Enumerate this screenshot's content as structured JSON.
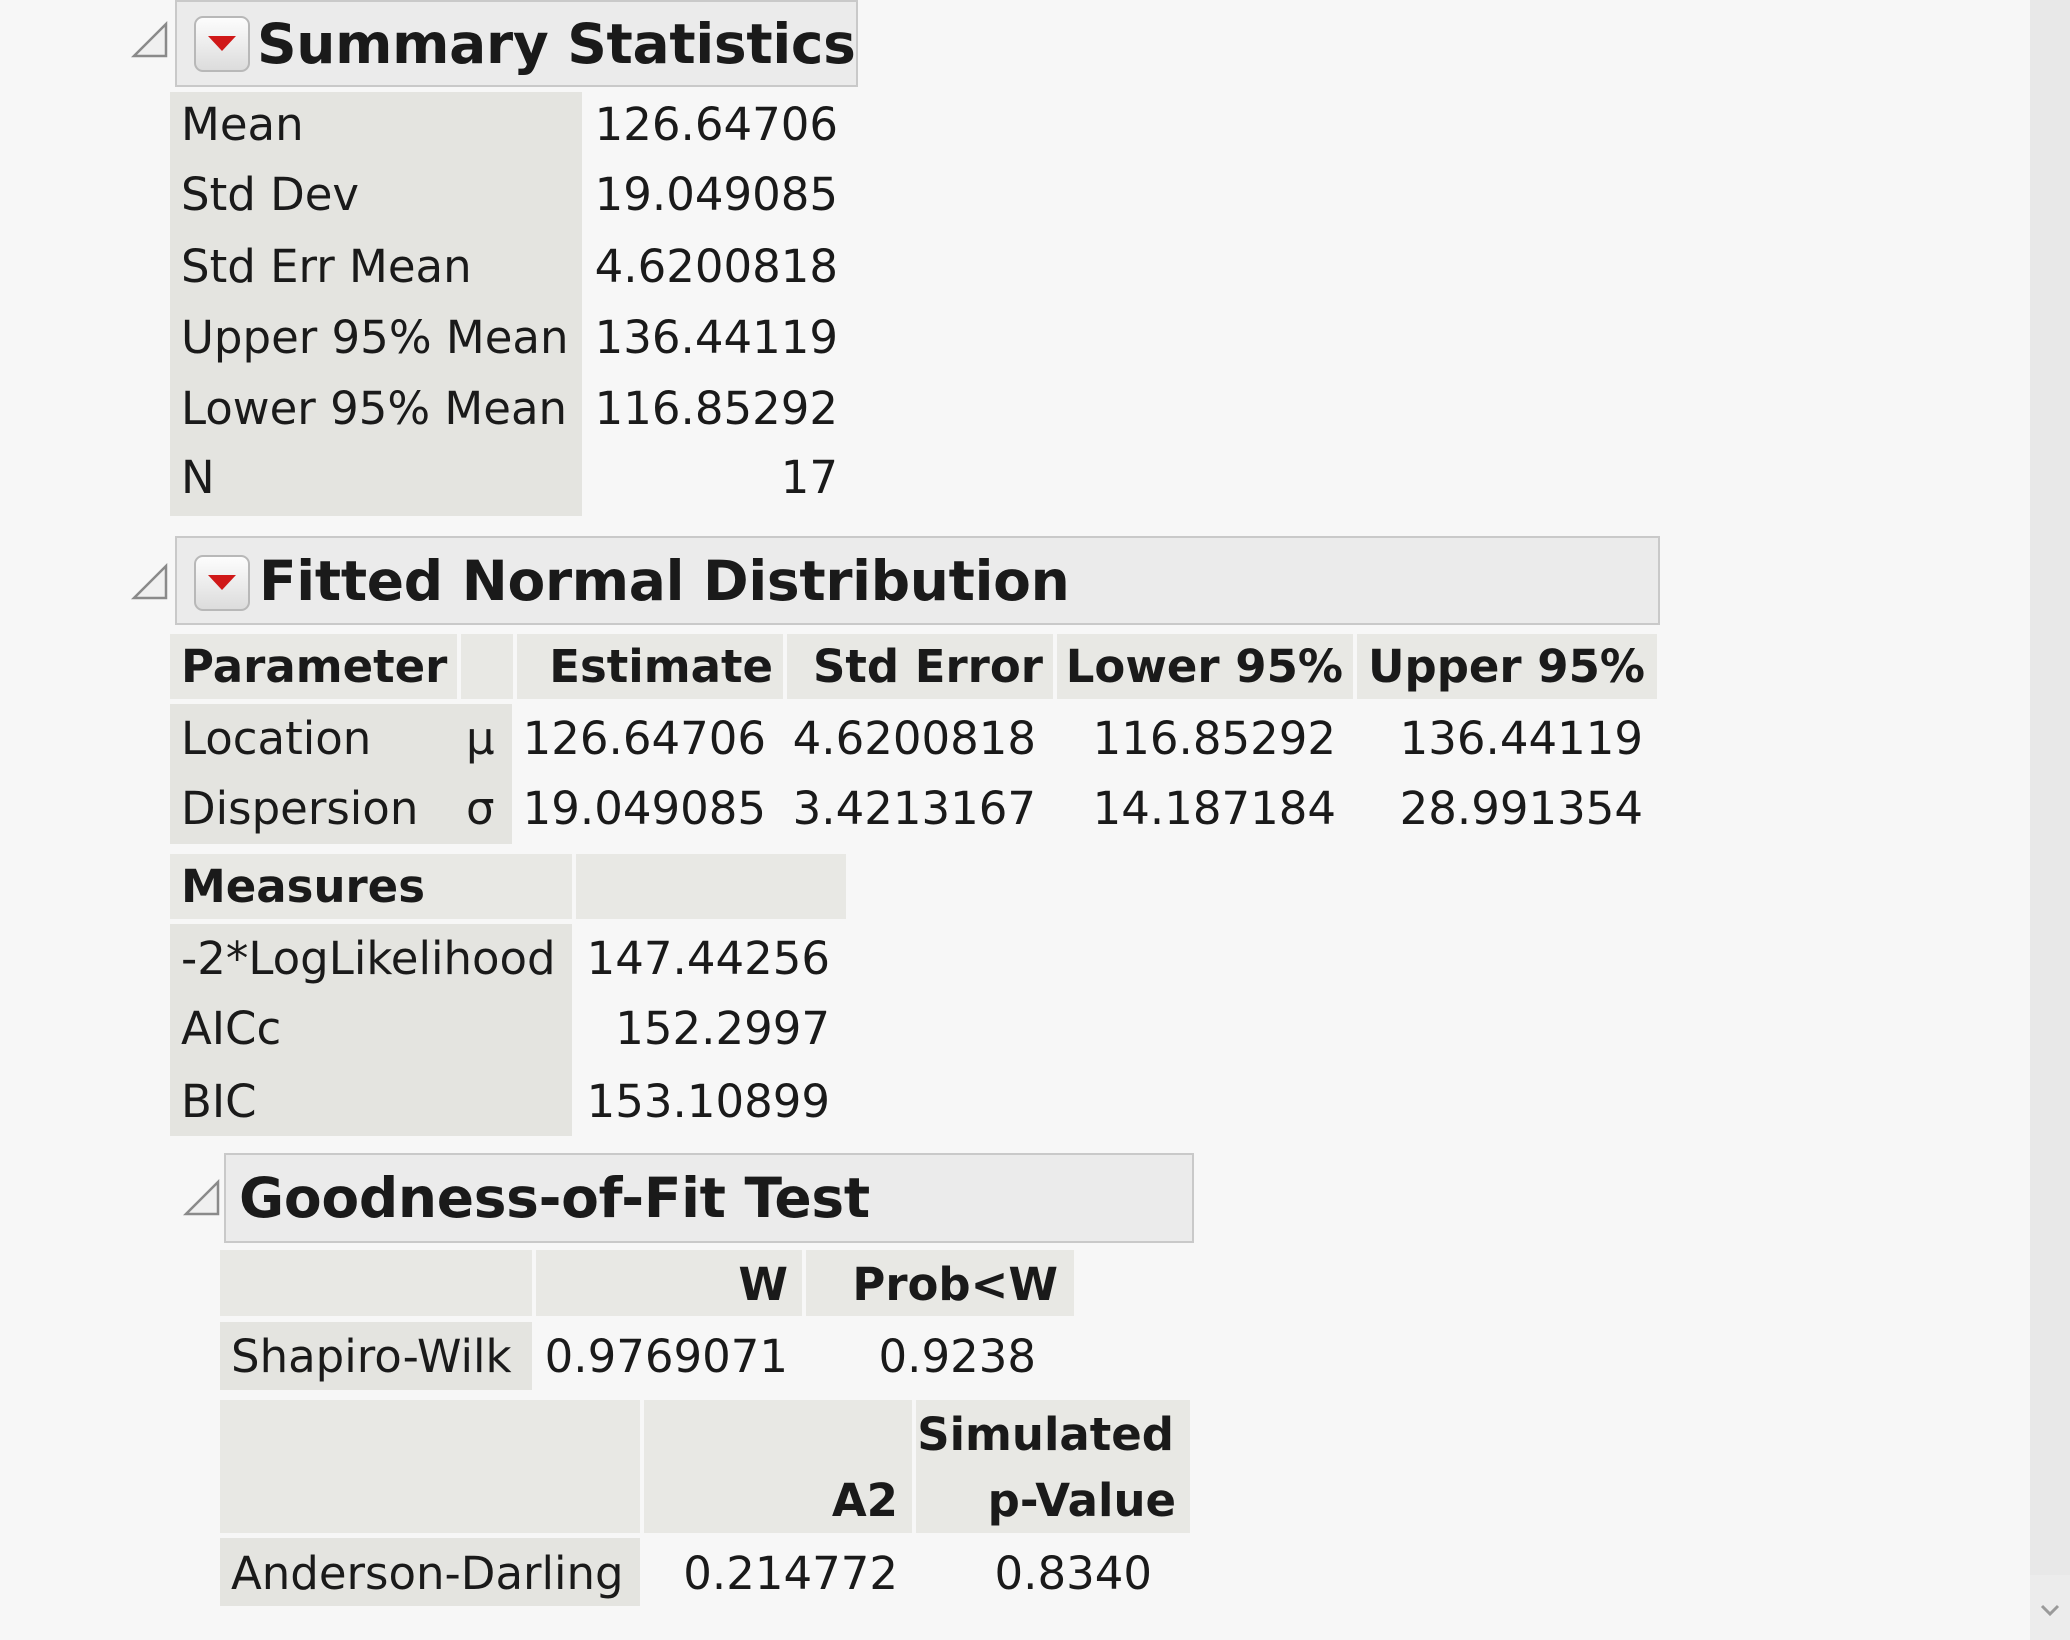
{
  "summary": {
    "title": "Summary Statistics",
    "rows": [
      {
        "label": "Mean",
        "value": "126.64706"
      },
      {
        "label": "Std Dev",
        "value": "19.049085"
      },
      {
        "label": "Std Err Mean",
        "value": "4.6200818"
      },
      {
        "label": "Upper 95% Mean",
        "value": "136.44119"
      },
      {
        "label": "Lower 95% Mean",
        "value": "116.85292"
      },
      {
        "label": "N",
        "value": "17"
      }
    ]
  },
  "fitted": {
    "title": "Fitted Normal Distribution",
    "params_header": [
      "Parameter",
      "",
      "Estimate",
      "Std Error",
      "Lower 95%",
      "Upper 95%"
    ],
    "params": [
      {
        "name": "Location",
        "symbol": "μ",
        "estimate": "126.64706",
        "std_error": "4.6200818",
        "lower95": "116.85292",
        "upper95": "136.44119"
      },
      {
        "name": "Dispersion",
        "symbol": "σ",
        "estimate": "19.049085",
        "std_error": "3.4213167",
        "lower95": "14.187184",
        "upper95": "28.991354"
      }
    ],
    "measures_header": "Measures",
    "measures": [
      {
        "label": "-2*LogLikelihood",
        "value": "147.44256"
      },
      {
        "label": "AICc",
        "value": "152.2997"
      },
      {
        "label": "BIC",
        "value": "153.10899"
      }
    ]
  },
  "gof": {
    "title": "Goodness-of-Fit Test",
    "sw_header": [
      "",
      "W",
      "Prob<W"
    ],
    "sw_row": {
      "label": "Shapiro-Wilk",
      "w": "0.9769071",
      "prob": "0.9238"
    },
    "ad_header": [
      "",
      "A2",
      "Simulated",
      "p-Value"
    ],
    "ad_row": {
      "label": "Anderson-Darling",
      "a2": "0.214772",
      "pvalue": "0.8340"
    }
  },
  "colors": {
    "menu_arrow": "#d01818",
    "label_bg": "#e4e4e0",
    "header_bg": "#ebebeb"
  },
  "icons": [
    "outline-collapse-icon",
    "red-triangle-menu-icon",
    "scroll-down-icon"
  ]
}
